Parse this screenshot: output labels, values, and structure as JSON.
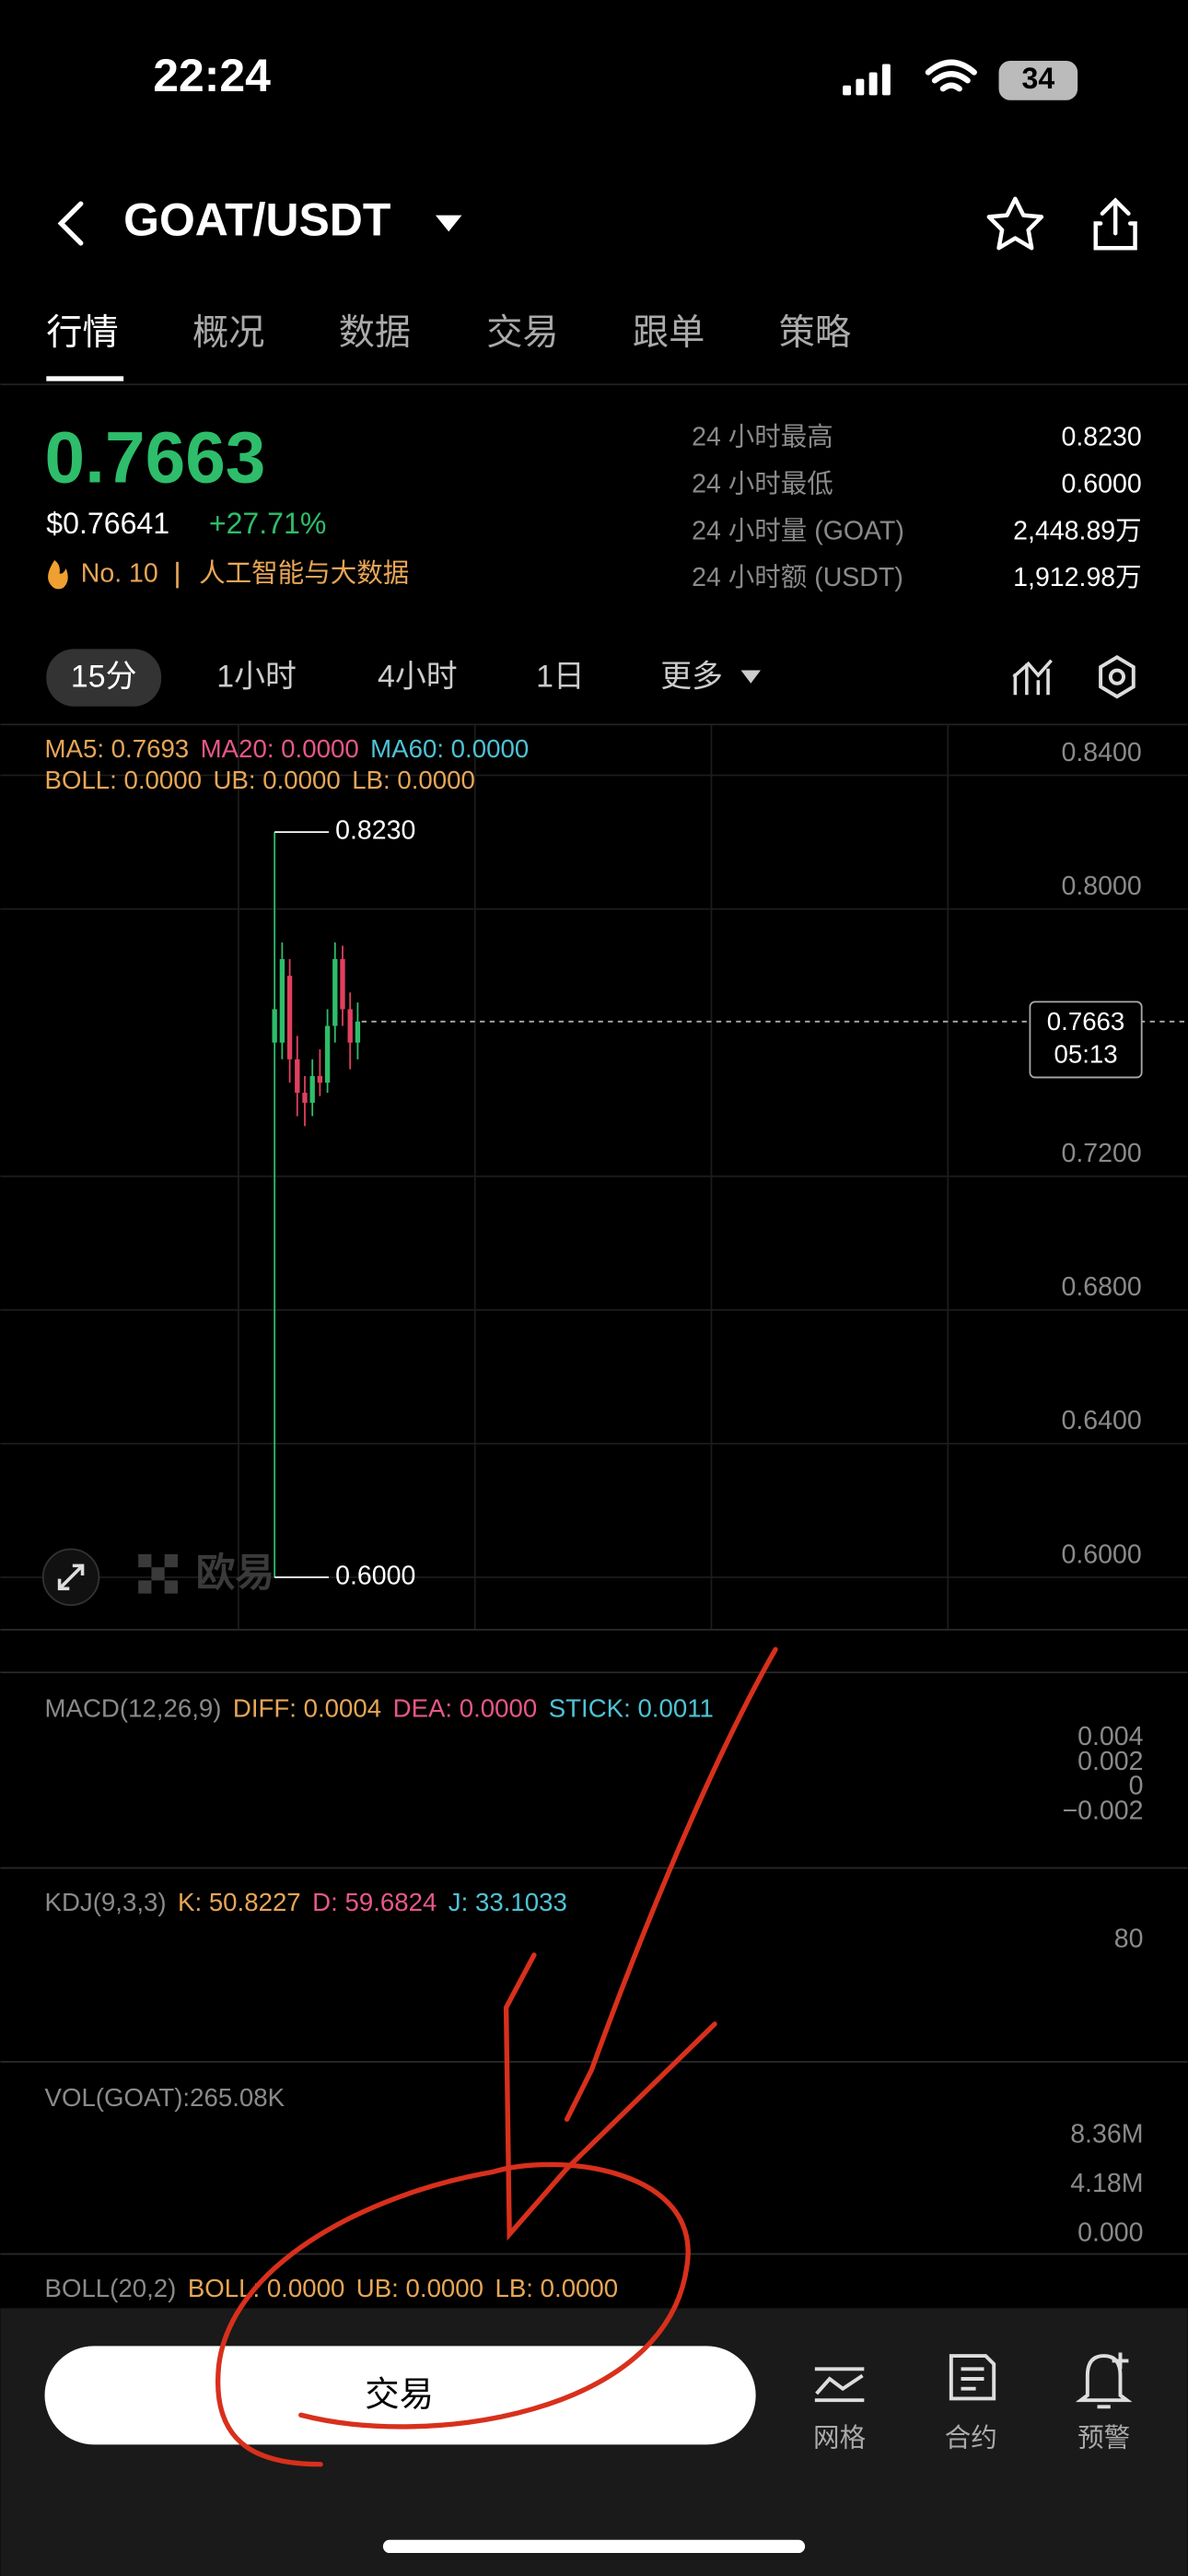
{
  "status_bar": {
    "time": "22:24",
    "battery": "34"
  },
  "header": {
    "pair": "GOAT/USDT"
  },
  "tabs": [
    "行情",
    "概况",
    "数据",
    "交易",
    "跟单",
    "策略"
  ],
  "ticker": {
    "price": "0.7663",
    "usd": "$0.76641",
    "change": "+27.71%",
    "rank": "No. 10",
    "sector": "人工智能与大数据",
    "stats": [
      {
        "label": "24 小时最高",
        "value": "0.8230"
      },
      {
        "label": "24 小时最低",
        "value": "0.6000"
      },
      {
        "label": "24 小时量 (GOAT)",
        "value": "2,448.89万"
      },
      {
        "label": "24 小时额 (USDT)",
        "value": "1,912.98万"
      }
    ]
  },
  "intervals": [
    "15分",
    "1小时",
    "4小时",
    "1日",
    "更多"
  ],
  "watermark": "欧易",
  "chart_data": {
    "type": "candlestick",
    "up_color": "#2ebd6b",
    "down_color": "#e0405e",
    "grid": true,
    "legend_rows": [
      [
        {
          "text": "MA5: 0.7693",
          "color": "#e8a657"
        },
        {
          "text": "MA20: 0.0000",
          "color": "#e8578a"
        },
        {
          "text": "MA60: 0.0000",
          "color": "#4fc3d6"
        }
      ],
      [
        {
          "text": "BOLL: 0.0000",
          "color": "#e8a657"
        },
        {
          "text": "UB: 0.0000",
          "color": "#e8a657"
        },
        {
          "text": "LB: 0.0000",
          "color": "#e8a657"
        }
      ]
    ],
    "ylim": [
      0.5843,
      0.8552
    ],
    "yticks": [
      {
        "value": 0.84,
        "label": "0.8400"
      },
      {
        "value": 0.8,
        "label": "0.8000"
      },
      {
        "value": 0.72,
        "label": "0.7200"
      },
      {
        "value": 0.68,
        "label": "0.6800"
      },
      {
        "value": 0.64,
        "label": "0.6400"
      },
      {
        "value": 0.6,
        "label": "0.6000"
      }
    ],
    "high_marker": {
      "value": 0.823,
      "label": "0.8230"
    },
    "low_marker": {
      "value": 0.6,
      "label": "0.6000"
    },
    "last_price": {
      "value": 0.7663,
      "label": "0.7663",
      "countdown": "05:13"
    },
    "candles": [
      {
        "open": 0.76,
        "high": 0.823,
        "low": 0.6,
        "close": 0.77
      },
      {
        "open": 0.76,
        "high": 0.79,
        "low": 0.755,
        "close": 0.785
      },
      {
        "open": 0.78,
        "high": 0.785,
        "low": 0.748,
        "close": 0.755
      },
      {
        "open": 0.755,
        "high": 0.762,
        "low": 0.738,
        "close": 0.745
      },
      {
        "open": 0.745,
        "high": 0.75,
        "low": 0.735,
        "close": 0.742
      },
      {
        "open": 0.742,
        "high": 0.755,
        "low": 0.738,
        "close": 0.75
      },
      {
        "open": 0.75,
        "high": 0.758,
        "low": 0.744,
        "close": 0.748
      },
      {
        "open": 0.748,
        "high": 0.77,
        "low": 0.745,
        "close": 0.765
      },
      {
        "open": 0.765,
        "high": 0.79,
        "low": 0.76,
        "close": 0.785
      },
      {
        "open": 0.785,
        "high": 0.789,
        "low": 0.765,
        "close": 0.77
      },
      {
        "open": 0.77,
        "high": 0.775,
        "low": 0.752,
        "close": 0.76
      },
      {
        "open": 0.76,
        "high": 0.772,
        "low": 0.755,
        "close": 0.7663
      }
    ]
  },
  "subcharts": [
    {
      "legend": [
        {
          "text": "MACD(12,26,9)",
          "color": "#8a8a8a"
        },
        {
          "text": "DIFF: 0.0004",
          "color": "#e8a657"
        },
        {
          "text": "DEA: 0.0000",
          "color": "#e8578a"
        },
        {
          "text": "STICK: 0.0011",
          "color": "#4fc3d6"
        }
      ],
      "ticks": [
        "0.004",
        "0.002",
        "0",
        "−0.002"
      ]
    },
    {
      "legend": [
        {
          "text": "KDJ(9,3,3)",
          "color": "#8a8a8a"
        },
        {
          "text": "K: 50.8227",
          "color": "#e8a657"
        },
        {
          "text": "D: 59.6824",
          "color": "#e8578a"
        },
        {
          "text": "J: 33.1033",
          "color": "#4fc3d6"
        }
      ],
      "ticks": [
        "80"
      ]
    },
    {
      "legend": [
        {
          "text": "VOL(GOAT):265.08K",
          "color": "#8a8a8a"
        }
      ],
      "ticks": [
        "8.36M",
        "4.18M",
        "0.000"
      ]
    },
    {
      "legend": [
        {
          "text": "BOLL(20,2)",
          "color": "#8a8a8a"
        },
        {
          "text": "BOLL: 0.0000",
          "color": "#e8a657"
        },
        {
          "text": "UB: 0.0000",
          "color": "#e8a657"
        },
        {
          "text": "LB: 0.0000",
          "color": "#e8a657"
        }
      ],
      "ticks": []
    }
  ],
  "footer": {
    "button": "交易",
    "actions": [
      "网格",
      "合约",
      "预警"
    ]
  }
}
